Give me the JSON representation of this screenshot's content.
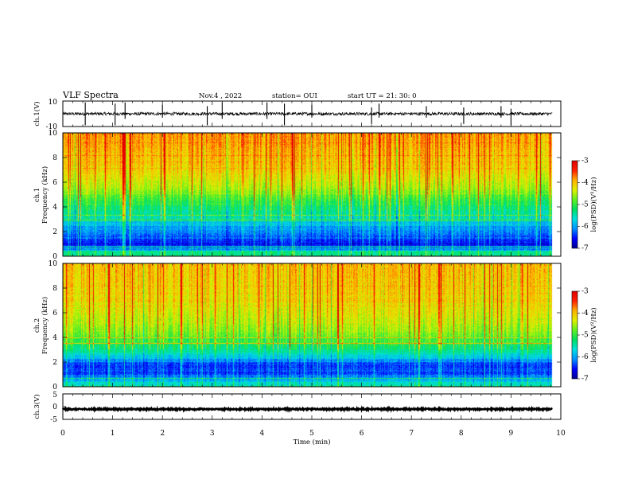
{
  "header": {
    "title": "VLF Spectra",
    "date": "Nov.4  , 2022",
    "station": "station= OUI",
    "start": "start  UT  =   21: 30: 0"
  },
  "chart_data": [
    {
      "type": "line",
      "panel": "waveform-ch1",
      "ylabel": "ch.1(V)",
      "yticklabels": [
        "10",
        "-10"
      ],
      "ylim": [
        -10,
        10
      ],
      "x_range": [
        0,
        9.83
      ],
      "baseline": 0,
      "noise_amplitude": 1.2,
      "spikes": [
        {
          "x": 0.45,
          "lo": -9,
          "hi": 9
        },
        {
          "x": 1.05,
          "lo": -9,
          "hi": 8
        },
        {
          "x": 1.25,
          "lo": -4,
          "hi": 9
        },
        {
          "x": 2.0,
          "lo": -3,
          "hi": 7
        },
        {
          "x": 2.9,
          "lo": -9,
          "hi": 6
        },
        {
          "x": 3.2,
          "lo": -4,
          "hi": 9
        },
        {
          "x": 4.1,
          "lo": -4,
          "hi": 9
        },
        {
          "x": 4.45,
          "lo": -9,
          "hi": 8
        },
        {
          "x": 5.0,
          "lo": -3,
          "hi": 7
        },
        {
          "x": 6.2,
          "lo": -8,
          "hi": 5
        },
        {
          "x": 6.35,
          "lo": -3,
          "hi": 8
        },
        {
          "x": 7.3,
          "lo": -3,
          "hi": 6
        },
        {
          "x": 8.05,
          "lo": -8,
          "hi": 5
        },
        {
          "x": 8.8,
          "lo": -3,
          "hi": 6
        },
        {
          "x": 9.0,
          "lo": -9,
          "hi": 4
        }
      ]
    },
    {
      "type": "heatmap",
      "panel": "spectrogram-ch1",
      "ylabel": "ch.1\nFrequency  (kHz)",
      "yticks": [
        0,
        2,
        4,
        6,
        8,
        10
      ],
      "ylim": [
        0,
        10
      ],
      "x_range": [
        0,
        9.83
      ],
      "colorbar": {
        "label": "log(PSD)(V²/Hz)",
        "range": [
          -7,
          -3
        ],
        "ticks": [
          -3,
          -4,
          -5,
          -6,
          -7
        ]
      },
      "profile": [
        {
          "f": 0.0,
          "v": -5.4
        },
        {
          "f": 0.3,
          "v": -5.2
        },
        {
          "f": 0.6,
          "v": -6.2
        },
        {
          "f": 1.0,
          "v": -6.6
        },
        {
          "f": 1.5,
          "v": -6.3
        },
        {
          "f": 2.5,
          "v": -5.9
        },
        {
          "f": 3.5,
          "v": -5.4
        },
        {
          "f": 4.5,
          "v": -5.0
        },
        {
          "f": 5.5,
          "v": -4.5
        },
        {
          "f": 7.0,
          "v": -4.1
        },
        {
          "f": 10.0,
          "v": -3.8
        }
      ]
    },
    {
      "type": "heatmap",
      "panel": "spectrogram-ch2",
      "ylabel": "ch.2\nFrequency  (kHz)",
      "yticks": [
        0,
        2,
        4,
        6,
        8,
        10
      ],
      "ylim": [
        0,
        10
      ],
      "x_range": [
        0,
        9.83
      ],
      "colorbar": {
        "label": "log(PSD)(V²/Hz)",
        "range": [
          -7,
          -3
        ],
        "ticks": [
          -3,
          -4,
          -5,
          -6,
          -7
        ]
      },
      "profile": [
        {
          "f": 0.0,
          "v": -5.3
        },
        {
          "f": 0.5,
          "v": -5.8
        },
        {
          "f": 1.0,
          "v": -6.3
        },
        {
          "f": 1.8,
          "v": -6.4
        },
        {
          "f": 2.6,
          "v": -5.6
        },
        {
          "f": 3.5,
          "v": -5.0
        },
        {
          "f": 4.5,
          "v": -4.6
        },
        {
          "f": 6.0,
          "v": -4.3
        },
        {
          "f": 8.0,
          "v": -4.1
        },
        {
          "f": 10.0,
          "v": -4.0
        }
      ]
    },
    {
      "type": "line",
      "panel": "waveform-ch3",
      "ylabel": "ch.3(V)",
      "yticklabels": [
        "5",
        "0",
        "-5"
      ],
      "ylim": [
        -5,
        5
      ],
      "x_range": [
        0,
        9.83
      ],
      "baseline": -1.0,
      "noise_amplitude": 0.25
    }
  ],
  "xaxis": {
    "xlabel": "Time  (min)",
    "xlim": [
      0,
      10
    ],
    "ticks": [
      0,
      1,
      2,
      3,
      4,
      5,
      6,
      7,
      8,
      9,
      10
    ]
  },
  "colors": {
    "colormap": [
      "#000090",
      "#0000ff",
      "#0090ff",
      "#00e0e0",
      "#00e060",
      "#60f020",
      "#e0f000",
      "#ffb000",
      "#ff2000",
      "#e00000"
    ]
  }
}
